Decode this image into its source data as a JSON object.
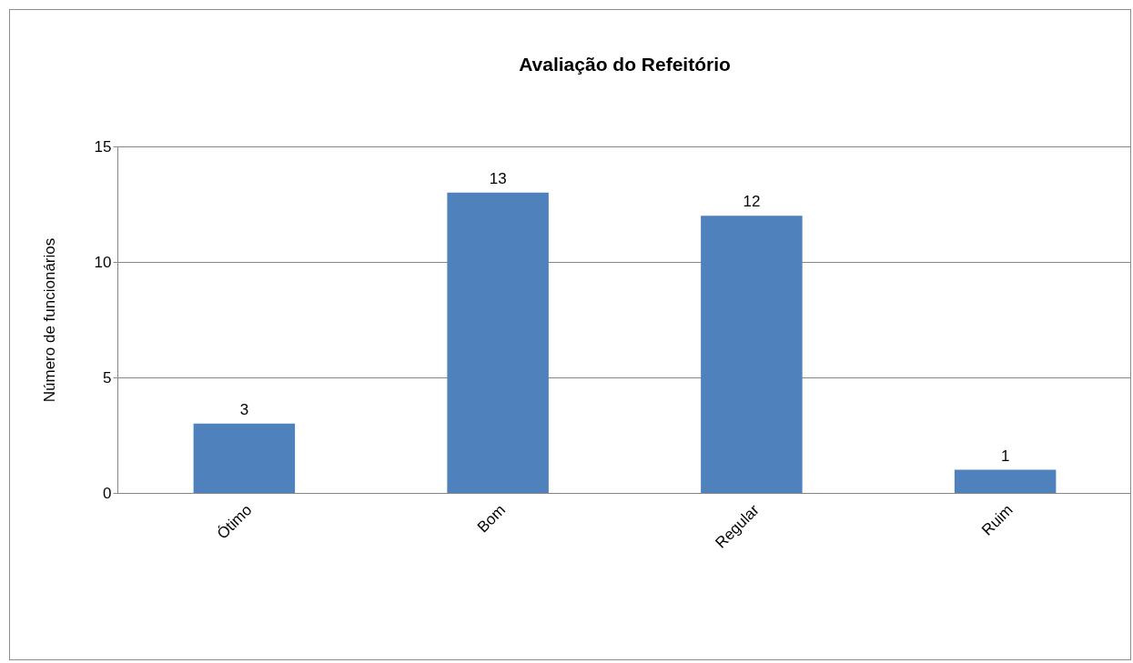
{
  "chart_data": {
    "type": "bar",
    "title": "Avaliação do Refeitório",
    "ylabel": "Número de funcionários",
    "categories": [
      "Ótimo",
      "Bom",
      "Regular",
      "Ruim"
    ],
    "values": [
      3,
      13,
      12,
      1
    ],
    "color": "#4f81bd",
    "ylim": [
      0,
      15
    ],
    "yticks": [
      0,
      5,
      10,
      15
    ],
    "grid": "y",
    "data_labels": true
  }
}
